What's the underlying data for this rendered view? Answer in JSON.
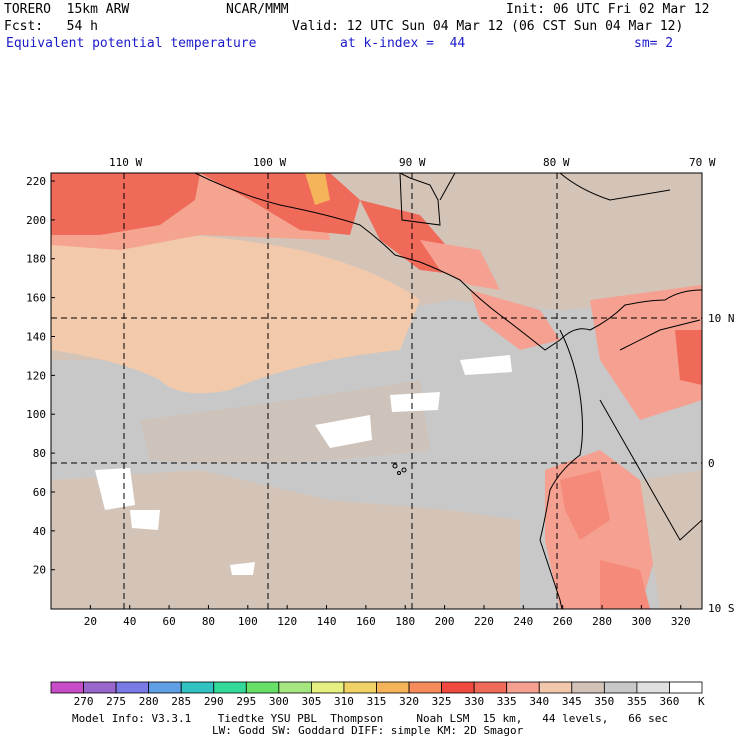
{
  "header": {
    "model": "TORERO  15km ARW",
    "center": "NCAR/MMM",
    "init": "Init: 06 UTC Fri 02 Mar 12",
    "fcst": "Fcst:   54 h",
    "valid": "Valid: 12 UTC Sun 04 Mar 12 (06 CST Sun 04 Mar 12)",
    "field": "Equivalent potential temperature",
    "level": "at k-index =  44",
    "smooth": "sm= 2"
  },
  "map": {
    "lon_labels": [
      "110 W",
      "100 W",
      "90 W",
      "80 W",
      "70 W"
    ],
    "lat_labels": [
      "10 N",
      "0",
      "10 S"
    ],
    "y_ticks": [
      "220",
      "200",
      "180",
      "160",
      "140",
      "120",
      "100",
      "80",
      "60",
      "40",
      "20"
    ],
    "x_ticks": [
      "20",
      "40",
      "60",
      "80",
      "100",
      "120",
      "140",
      "160",
      "180",
      "200",
      "220",
      "240",
      "260",
      "280",
      "300",
      "320"
    ]
  },
  "colorbar": {
    "labels": [
      "270",
      "275",
      "280",
      "285",
      "290",
      "295",
      "300",
      "305",
      "310",
      "315",
      "320",
      "325",
      "330",
      "335",
      "340",
      "345",
      "350",
      "355",
      "360"
    ],
    "unit": "K",
    "colors": [
      "#c84cc8",
      "#9966cc",
      "#7a7ae6",
      "#5f9fe6",
      "#33c2c2",
      "#33d999",
      "#66e066",
      "#a6e680",
      "#e6f080",
      "#f0d266",
      "#f5b45a",
      "#f58a5a",
      "#f04a40",
      "#f06a5a",
      "#f5a090",
      "#f2c8ac",
      "#d2c2b8",
      "#c8c8c8",
      "#e0e0e0",
      "#ffffff"
    ]
  },
  "footer": {
    "line1": "Model Info: V3.3.1    Tiedtke YSU PBL  Thompson     Noah LSM  15 km,   44 levels,   66 sec",
    "line2": "LW: Godd SW: Goddard DIFF: simple KM: 2D Smagor"
  }
}
